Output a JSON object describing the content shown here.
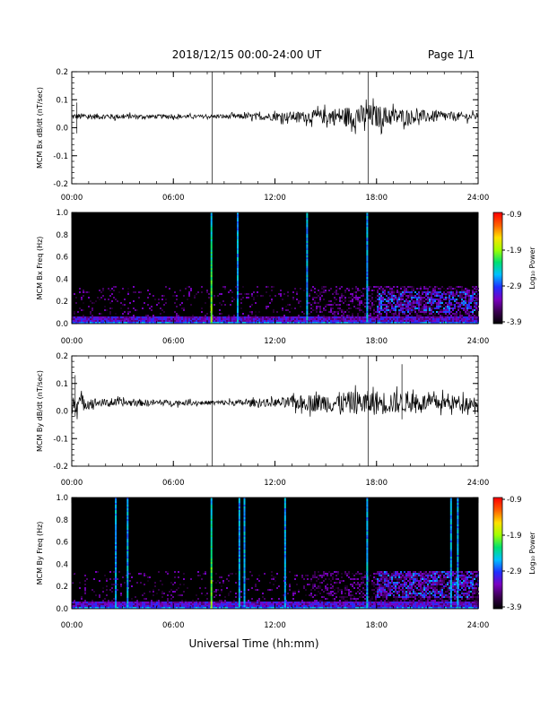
{
  "header": {
    "title": "2018/12/15  00:00-24:00 UT",
    "page": "Page 1/1"
  },
  "footer": {
    "xlabel": "Universal Time (hh:mm)"
  },
  "colorbar": {
    "label": "Log₁₀ Power",
    "ticks": [
      "-0.9",
      "-1.9",
      "-2.9",
      "-3.9"
    ],
    "range": [
      -3.9,
      -0.9
    ],
    "colors": [
      "#000000",
      "#3a0050",
      "#7a00c0",
      "#2030ff",
      "#00c0ff",
      "#00e070",
      "#a0ff00",
      "#ffe000",
      "#ff6000",
      "#ff0000"
    ]
  },
  "chart_data": [
    {
      "type": "line",
      "ylabel": "MCM Bx dB/dt (nT/sec)",
      "xlim": [
        0,
        24
      ],
      "ylim": [
        -0.2,
        0.2
      ],
      "xticks": [
        "00:00",
        "06:00",
        "12:00",
        "18:00",
        "24:00"
      ],
      "yticks": [
        "0.2",
        "0.1",
        "0.0",
        "-0.1",
        "-0.2"
      ],
      "baseline": 0.04,
      "noise_envelope": [
        [
          0,
          0.012
        ],
        [
          4,
          0.008
        ],
        [
          8,
          0.006
        ],
        [
          11,
          0.012
        ],
        [
          14,
          0.02
        ],
        [
          16,
          0.035
        ],
        [
          17.5,
          0.045
        ],
        [
          20,
          0.025
        ],
        [
          24,
          0.012
        ]
      ],
      "spikes": [
        [
          0.3,
          0.09,
          -0.02
        ],
        [
          8.3,
          0.2,
          -0.2
        ],
        [
          17.5,
          0.2,
          -0.2
        ]
      ]
    },
    {
      "type": "heatmap",
      "ylabel": "MCM Bx Freq (Hz)",
      "xlim": [
        0,
        24
      ],
      "ylim": [
        0,
        1.0
      ],
      "xticks": [
        "00:00",
        "06:00",
        "12:00",
        "18:00",
        "24:00"
      ],
      "yticks": [
        "1.0",
        "0.8",
        "0.6",
        "0.4",
        "0.2",
        "0.0"
      ],
      "vertical_lines_hours": [
        8.25,
        9.8,
        13.9,
        17.45
      ],
      "enhanced_region": {
        "x_hours": [
          18,
          24
        ],
        "y_hz": [
          0.1,
          0.3
        ]
      }
    },
    {
      "type": "line",
      "ylabel": "MCM By dB/dt (nT/sec)",
      "xlim": [
        0,
        24
      ],
      "ylim": [
        -0.2,
        0.2
      ],
      "xticks": [
        "00:00",
        "06:00",
        "12:00",
        "18:00",
        "24:00"
      ],
      "yticks": [
        "0.2",
        "0.1",
        "0.0",
        "-0.1",
        "-0.2"
      ],
      "baseline": 0.03,
      "noise_envelope": [
        [
          0,
          0.04
        ],
        [
          1.5,
          0.015
        ],
        [
          8,
          0.008
        ],
        [
          12,
          0.015
        ],
        [
          14,
          0.03
        ],
        [
          16,
          0.04
        ],
        [
          18,
          0.045
        ],
        [
          21,
          0.03
        ],
        [
          24,
          0.025
        ]
      ],
      "spikes": [
        [
          0.2,
          0.13,
          -0.02
        ],
        [
          8.3,
          0.2,
          -0.2
        ],
        [
          17.5,
          0.2,
          -0.2
        ],
        [
          19.5,
          0.17,
          -0.03
        ]
      ]
    },
    {
      "type": "heatmap",
      "ylabel": "MCM By Freq (Hz)",
      "xlim": [
        0,
        24
      ],
      "ylim": [
        0,
        1.0
      ],
      "xticks": [
        "00:00",
        "06:00",
        "12:00",
        "18:00",
        "24:00"
      ],
      "yticks": [
        "1.0",
        "0.8",
        "0.6",
        "0.4",
        "0.2",
        "0.0"
      ],
      "vertical_lines_hours": [
        2.6,
        3.3,
        8.25,
        9.9,
        10.2,
        12.6,
        17.45,
        22.4,
        22.8
      ],
      "enhanced_region": {
        "x_hours": [
          18,
          24
        ],
        "y_hz": [
          0.1,
          0.35
        ]
      }
    }
  ]
}
